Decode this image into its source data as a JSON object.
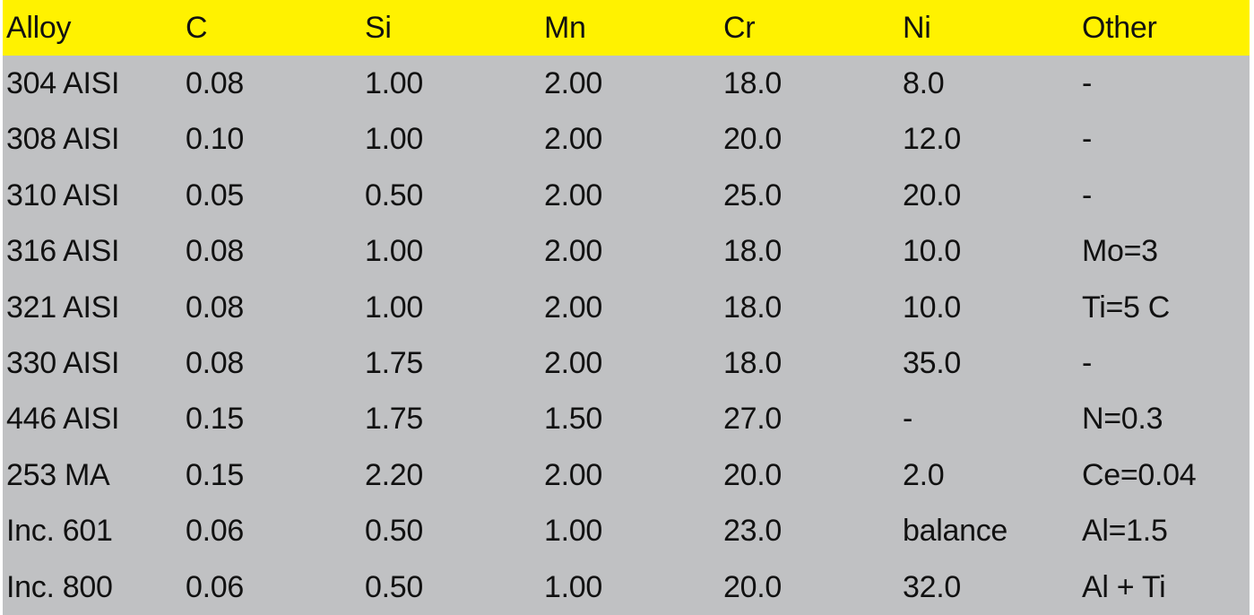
{
  "colors": {
    "header_background": "#fff200",
    "body_background": "#c0c1c3",
    "text": "#111111"
  },
  "table": {
    "headers": [
      "Alloy",
      "C",
      "Si",
      "Mn",
      "Cr",
      "Ni",
      "Other"
    ],
    "rows": [
      [
        "304 AISI",
        "0.08",
        "1.00",
        "2.00",
        "18.0",
        "8.0",
        "-"
      ],
      [
        "308 AISI",
        "0.10",
        "1.00",
        "2.00",
        "20.0",
        "12.0",
        "-"
      ],
      [
        "310 AISI",
        "0.05",
        "0.50",
        "2.00",
        "25.0",
        "20.0",
        "-"
      ],
      [
        "316 AISI",
        "0.08",
        "1.00",
        "2.00",
        "18.0",
        "10.0",
        "Mo=3"
      ],
      [
        "321 AISI",
        "0.08",
        "1.00",
        "2.00",
        "18.0",
        "10.0",
        "Ti=5 C"
      ],
      [
        "330 AISI",
        "0.08",
        "1.75",
        "2.00",
        "18.0",
        "35.0",
        "-"
      ],
      [
        "446 AISI",
        "0.15",
        "1.75",
        "1.50",
        "27.0",
        "-",
        "N=0.3"
      ],
      [
        "253 MA",
        "0.15",
        "2.20",
        "2.00",
        "20.0",
        "2.0",
        "Ce=0.04"
      ],
      [
        "Inc. 601",
        "0.06",
        "0.50",
        "1.00",
        "23.0",
        "balance",
        "Al=1.5"
      ],
      [
        "Inc. 800",
        "0.06",
        "0.50",
        "1.00",
        "20.0",
        "32.0",
        "Al + Ti"
      ]
    ]
  }
}
